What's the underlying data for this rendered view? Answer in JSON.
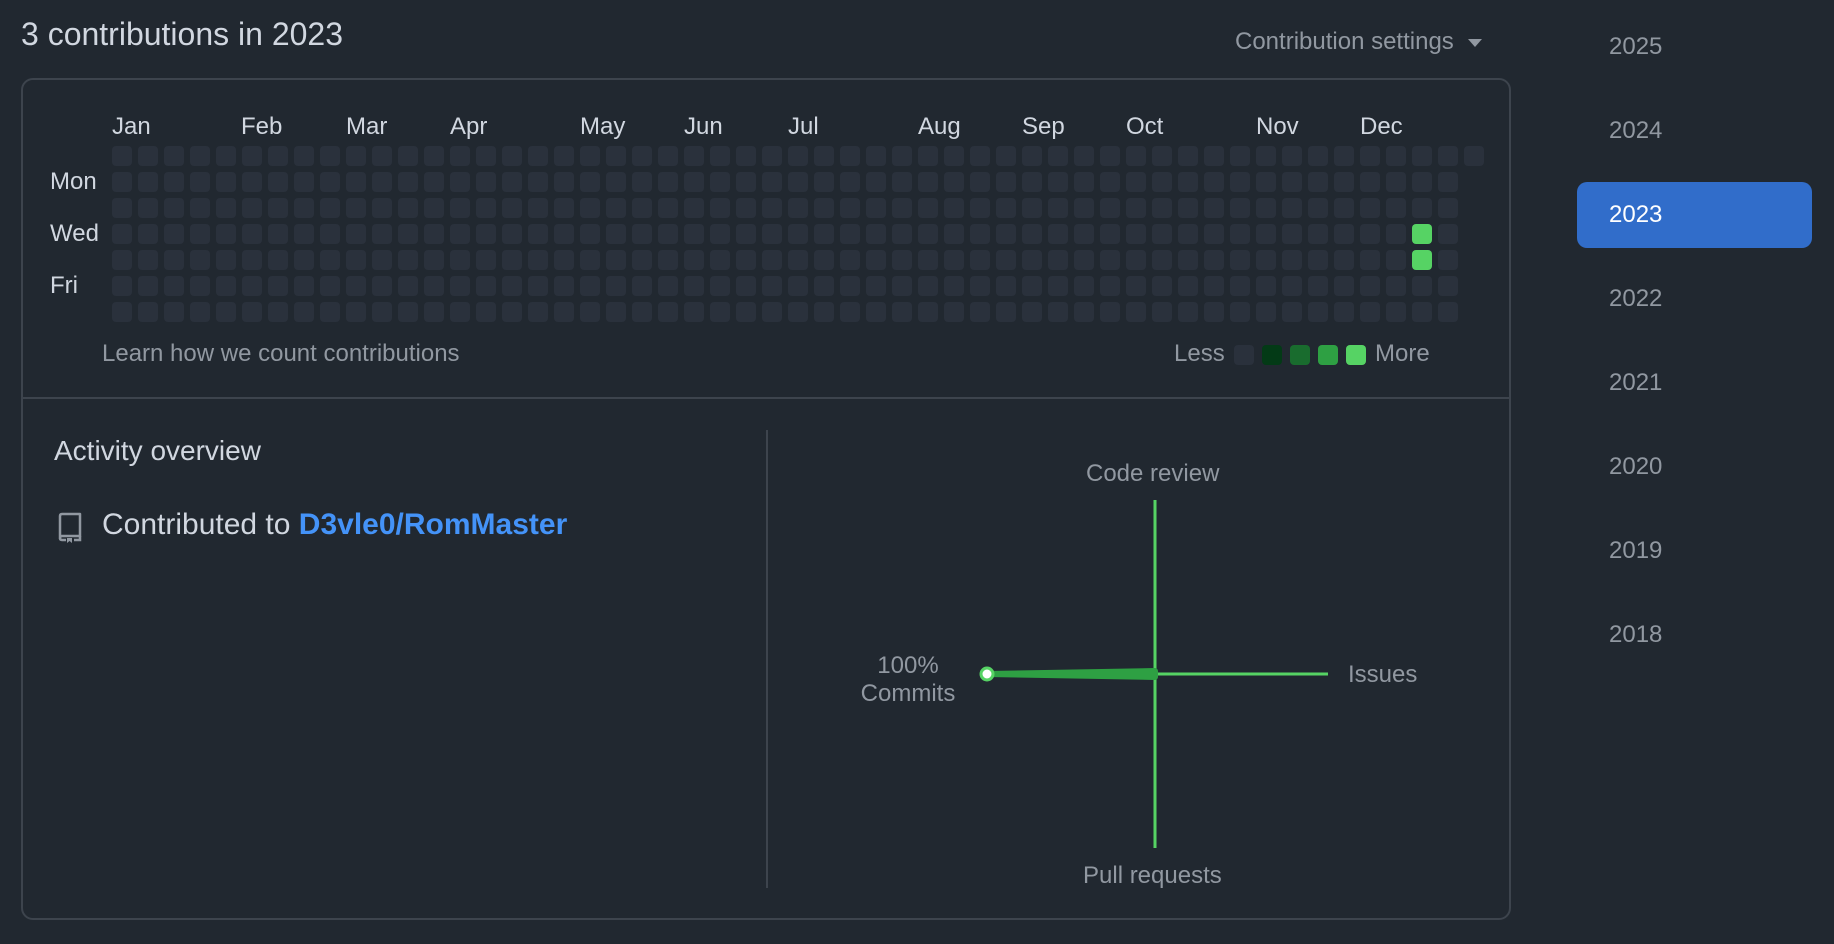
{
  "header": {
    "title": "3 contributions in 2023",
    "settings_label": "Contribution settings"
  },
  "calendar": {
    "months": [
      {
        "label": "Jan"
      },
      {
        "label": "Feb"
      },
      {
        "label": "Mar"
      },
      {
        "label": "Apr"
      },
      {
        "label": "May"
      },
      {
        "label": "Jun"
      },
      {
        "label": "Jul"
      },
      {
        "label": "Aug"
      },
      {
        "label": "Sep"
      },
      {
        "label": "Oct"
      },
      {
        "label": "Nov"
      },
      {
        "label": "Dec"
      }
    ],
    "weekdays": [
      "Mon",
      "Wed",
      "Fri"
    ],
    "weeks": 53,
    "first_week_start_day": 0,
    "last_week_end_day": 0,
    "contributions": [
      {
        "week": 50,
        "day": 3,
        "level": 4
      },
      {
        "week": 50,
        "day": 4,
        "level": 4
      }
    ],
    "learn_link": "Learn how we count contributions",
    "legend_less": "Less",
    "legend_more": "More",
    "legend_colors": [
      "#2a313c",
      "#033a16",
      "#196c2e",
      "#2ea043",
      "#56d364"
    ]
  },
  "activity": {
    "title": "Activity overview",
    "contributed_prefix": "Contributed to",
    "repo": "D3vle0/RomMaster",
    "repo_icon": "repo-icon",
    "axes": {
      "top": "Code review",
      "bottom": "Pull requests",
      "left_percent": "100%",
      "left": "Commits",
      "right": "Issues"
    },
    "commits_percent": 100
  },
  "years": [
    "2025",
    "2024",
    "2023",
    "2022",
    "2021",
    "2020",
    "2019",
    "2018"
  ],
  "selected_year": "2023",
  "colors": {
    "background": "#212830",
    "border": "#3d444d",
    "accent": "#316dca",
    "link": "#4493f8",
    "graph_green": "#56d364"
  }
}
